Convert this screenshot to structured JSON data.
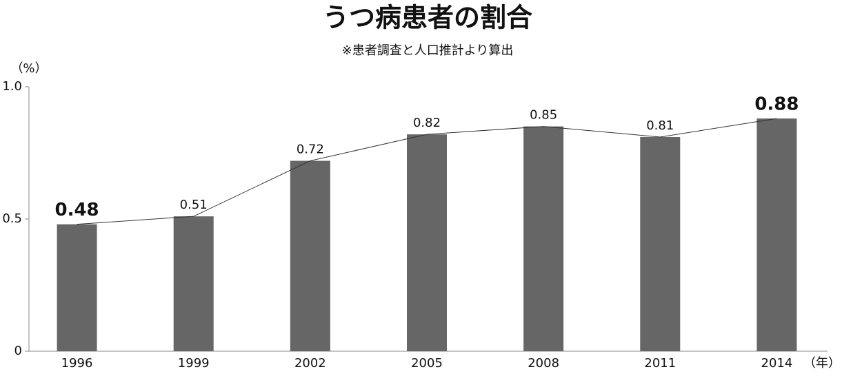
{
  "chart_data": {
    "type": "bar",
    "title": "うつ病患者の割合",
    "subtitle": "※患者調査と人口推計より算出",
    "y_label": "（%）",
    "x_label": "（年）",
    "categories": [
      "1996",
      "1999",
      "2002",
      "2005",
      "2008",
      "2011",
      "2014"
    ],
    "values": [
      0.48,
      0.51,
      0.72,
      0.82,
      0.85,
      0.81,
      0.88
    ],
    "color": "#666666",
    "line_overlay": true,
    "line_color": "#333333",
    "ylim": [
      0,
      1
    ],
    "yticks": [
      0,
      0.5,
      {
        "value": 1,
        "label": "1.0"
      }
    ],
    "grid": false
  }
}
